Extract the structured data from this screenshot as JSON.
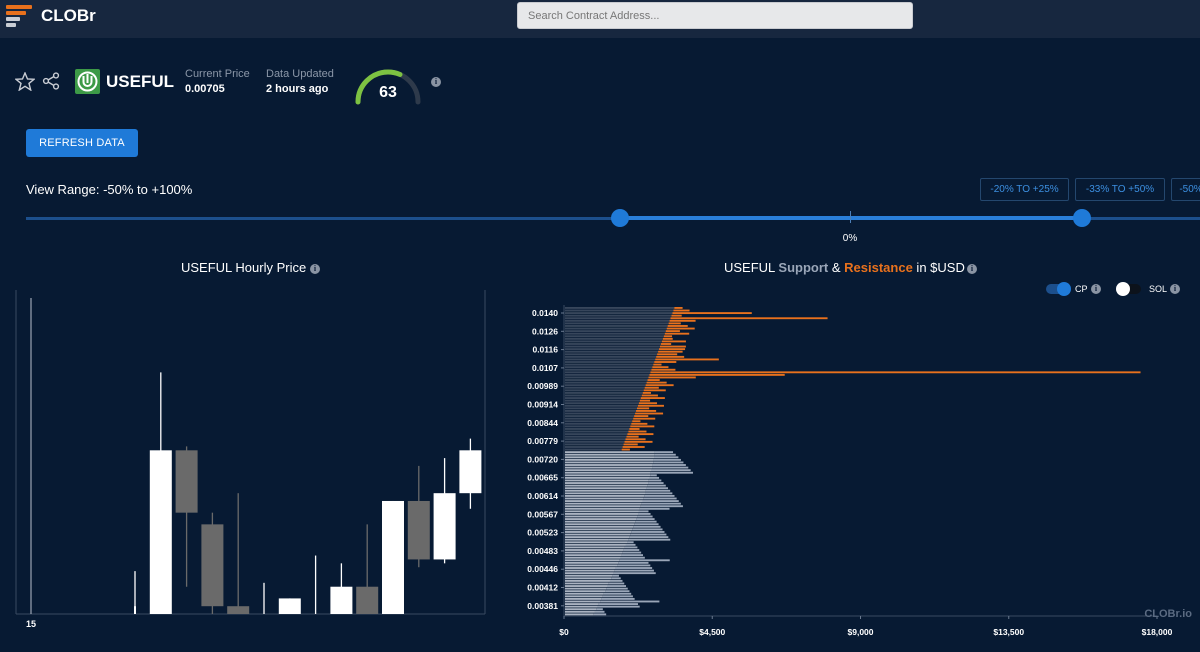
{
  "app": {
    "brand": "CLOBr",
    "watermark": "CLOBr.io"
  },
  "search": {
    "placeholder": "Search Contract Address..."
  },
  "token": {
    "name": "USEFUL",
    "current_price_label": "Current Price",
    "current_price": "0.00705",
    "data_updated_label": "Data Updated",
    "data_updated": "2 hours ago",
    "score": "63",
    "score_fraction": 0.63
  },
  "actions": {
    "refresh_label": "REFRESH DATA"
  },
  "view_range": {
    "label": "View Range: -50% to +100%",
    "presets": [
      "-20% TO +25%",
      "-33% TO +50%",
      "-50%"
    ],
    "center_label": "0%"
  },
  "colors": {
    "accent": "#1f7ad8",
    "support": "#9aa6b8",
    "resistance": "#e8711d",
    "bullish": "#ffffff",
    "bearish": "#6a6a6a",
    "gauge": "#7dc242"
  },
  "price_chart": {
    "title": "USEFUL Hourly Price",
    "x_tick": "15"
  },
  "sr_chart": {
    "title_prefix": "USEFUL ",
    "title_support": "Support",
    "title_amp": " & ",
    "title_resistance": "Resistance",
    "title_suffix": " in $USD",
    "toggles": [
      {
        "label": "CP",
        "on": true
      },
      {
        "label": "SOL",
        "on": false
      }
    ]
  },
  "chart_data": [
    {
      "type": "candlestick",
      "title": "USEFUL Hourly Price",
      "x_tick_labels": [
        "15"
      ],
      "candles": [
        {
          "o": 0.005,
          "c": 0.0052,
          "h": 0.0061,
          "l": 0.005
        },
        {
          "o": 0.005,
          "c": 0.0092,
          "h": 0.0112,
          "l": 0.005
        },
        {
          "o": 0.0092,
          "c": 0.0076,
          "h": 0.0093,
          "l": 0.0057
        },
        {
          "o": 0.0073,
          "c": 0.0052,
          "h": 0.0076,
          "l": 0.005
        },
        {
          "o": 0.0052,
          "c": 0.005,
          "h": 0.0081,
          "l": 0.005
        },
        {
          "o": 0.005,
          "c": 0.005,
          "h": 0.0058,
          "l": 0.005
        },
        {
          "o": 0.005,
          "c": 0.0054,
          "h": 0.0054,
          "l": 0.005
        },
        {
          "o": 0.005,
          "c": 0.005,
          "h": 0.0065,
          "l": 0.005
        },
        {
          "o": 0.005,
          "c": 0.0057,
          "h": 0.0063,
          "l": 0.005
        },
        {
          "o": 0.0057,
          "c": 0.005,
          "h": 0.0073,
          "l": 0.005
        },
        {
          "o": 0.005,
          "c": 0.0079,
          "h": 0.0079,
          "l": 0.005
        },
        {
          "o": 0.0079,
          "c": 0.0064,
          "h": 0.0088,
          "l": 0.0062
        },
        {
          "o": 0.0064,
          "c": 0.0081,
          "h": 0.009,
          "l": 0.0063
        },
        {
          "o": 0.0081,
          "c": 0.0092,
          "h": 0.0095,
          "l": 0.0077
        }
      ]
    },
    {
      "type": "bar",
      "orientation": "horizontal",
      "title": "USEFUL Support & Resistance in $USD",
      "current_price": 0.00705,
      "y_tick_labels": [
        "0.0140",
        "0.0126",
        "0.0116",
        "0.0107",
        "0.00989",
        "0.00914",
        "0.00844",
        "0.00779",
        "0.00720",
        "0.00665",
        "0.00614",
        "0.00567",
        "0.00523",
        "0.00483",
        "0.00446",
        "0.00412",
        "0.00381"
      ],
      "x_tick_labels": [
        "$0",
        "$4,500",
        "$9,000",
        "$13,500",
        "$18,000"
      ],
      "xlim": [
        0,
        18000
      ],
      "series": [
        {
          "name": "Resistance",
          "color": "#e8711d",
          "price_range": [
            0.00705,
            0.0145
          ]
        },
        {
          "name": "Support",
          "color": "#9aa6b8",
          "price_range": [
            0.0035,
            0.00705
          ]
        }
      ],
      "notable_bars": [
        {
          "price": 0.0129,
          "value": 5700
        },
        {
          "price": 0.0127,
          "value": 8000
        },
        {
          "price": 0.0103,
          "value": 4700
        },
        {
          "price": 0.0099,
          "value": 17500
        },
        {
          "price": 0.00985,
          "value": 6700
        }
      ]
    }
  ]
}
